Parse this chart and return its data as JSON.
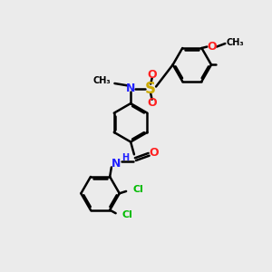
{
  "bg_color": "#ebebeb",
  "bond_color": "#000000",
  "N_color": "#2020ff",
  "O_color": "#ff2020",
  "S_color": "#ccaa00",
  "Cl_color": "#00bb00",
  "line_width": 1.8,
  "dbo": 0.055,
  "figsize": [
    3.0,
    3.0
  ],
  "dpi": 100,
  "xlim": [
    0,
    10
  ],
  "ylim": [
    0,
    10
  ],
  "ring_r": 0.72,
  "font_size_atom": 9,
  "font_size_small": 7
}
